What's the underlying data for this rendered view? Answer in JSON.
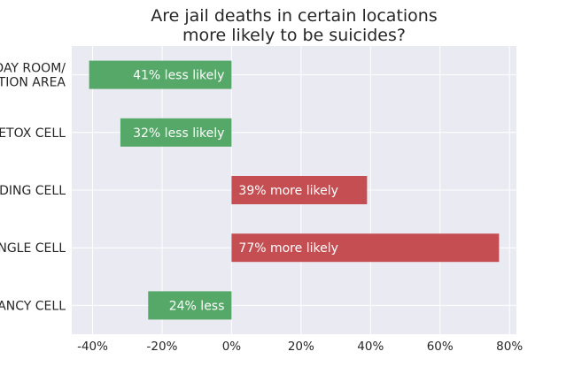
{
  "chart_data": {
    "type": "bar",
    "orientation": "horizontal",
    "title": [
      "Are jail deaths in certain locations",
      "more likely to be suicides?"
    ],
    "categories": [
      "DAY ROOM/\nTION AREA",
      "ETOX CELL",
      "DING CELL",
      "NGLE CELL",
      "ANCY CELL"
    ],
    "values": [
      -41,
      -32,
      39,
      77,
      -24
    ],
    "data_labels": [
      "41% less likely",
      "32% less likely",
      "39% more likely",
      "77% more likely",
      "24% less"
    ],
    "xlim": [
      -46,
      82
    ],
    "xticks": [
      -40,
      -20,
      0,
      20,
      40,
      60,
      80
    ],
    "xtick_labels": [
      "-40%",
      "-20%",
      "0%",
      "20%",
      "40%",
      "60%",
      "80%"
    ],
    "grid": true,
    "colors": {
      "negative": "#55a868",
      "positive": "#c44e52",
      "background": "#eaeaf2",
      "grid": "#ffffff",
      "text": "#262626"
    }
  }
}
